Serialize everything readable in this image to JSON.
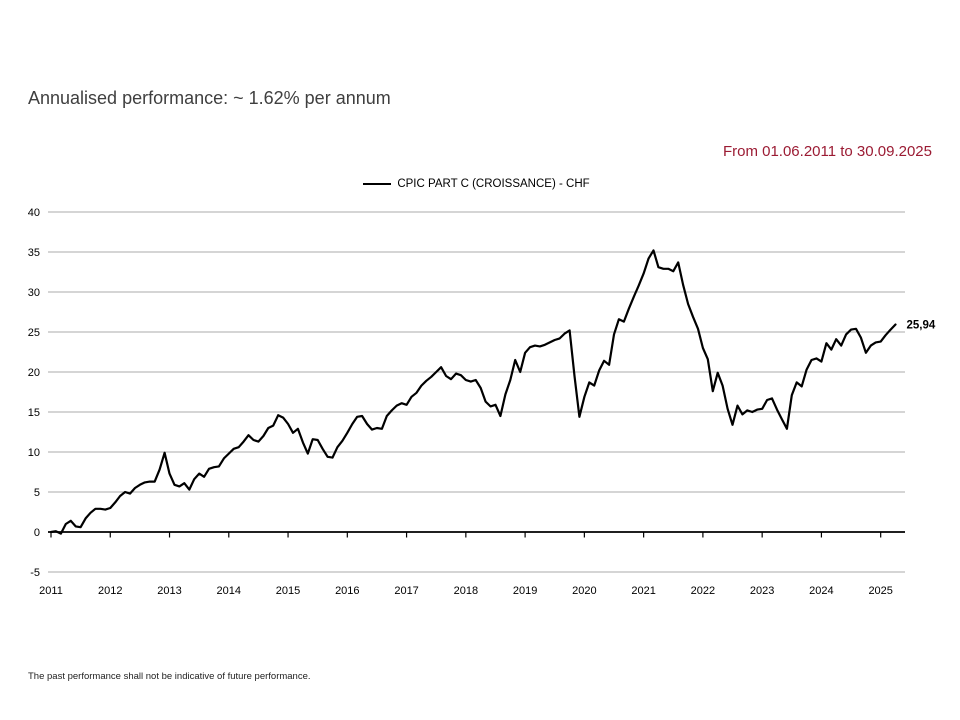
{
  "page": {
    "background": "#ffffff"
  },
  "header": {
    "title": "Annualised performance: ~ 1.62% per annum",
    "period": "From 01.06.2011 to 30.09.2025",
    "period_color": "#9b1b33",
    "title_color": "#3f3f3f"
  },
  "legend": {
    "label": "CPIC PART C (CROISSANCE) - CHF",
    "line_color": "#000000"
  },
  "footer": {
    "disclaimer": "The past performance shall not be indicative of future performance."
  },
  "chart_data": {
    "type": "line",
    "title": "Annualised performance: ~ 1.62% per annum",
    "period": "From 01.06.2011 to 30.09.2025",
    "frequency": "monthly",
    "x_start": "2011-06",
    "x_end": "2025-09",
    "x_tick_labels": [
      "2011",
      "2012",
      "2013",
      "2014",
      "2015",
      "2016",
      "2017",
      "2018",
      "2019",
      "2020",
      "2021",
      "2022",
      "2023",
      "2024",
      "2025"
    ],
    "y_ticks": [
      40,
      35,
      30,
      25,
      20,
      15,
      10,
      5,
      0,
      -5
    ],
    "ylim": [
      -5,
      40
    ],
    "grid": "horizontal",
    "grid_color": "#ababab",
    "axis_color": "#000000",
    "legend_position": "top-center",
    "end_value_label": "25,94",
    "series": [
      {
        "name": "CPIC PART C (CROISSANCE) - CHF",
        "color": "#000000",
        "values": [
          0.0,
          0.1,
          -0.2,
          1.0,
          1.4,
          0.7,
          0.6,
          1.7,
          2.4,
          2.9,
          2.9,
          2.8,
          3.0,
          3.7,
          4.5,
          5.0,
          4.8,
          5.5,
          5.9,
          6.2,
          6.3,
          6.3,
          7.8,
          9.9,
          7.3,
          5.9,
          5.7,
          6.1,
          5.3,
          6.6,
          7.3,
          6.9,
          7.9,
          8.1,
          8.2,
          9.2,
          9.8,
          10.4,
          10.6,
          11.3,
          12.1,
          11.5,
          11.3,
          12.0,
          13.0,
          13.3,
          14.6,
          14.3,
          13.5,
          12.4,
          12.9,
          11.2,
          9.8,
          11.6,
          11.5,
          10.4,
          9.4,
          9.3,
          10.6,
          11.4,
          12.4,
          13.5,
          14.4,
          14.5,
          13.5,
          12.8,
          13.0,
          12.9,
          14.5,
          15.2,
          15.8,
          16.1,
          15.9,
          16.9,
          17.4,
          18.3,
          18.9,
          19.4,
          20.0,
          20.6,
          19.5,
          19.1,
          19.8,
          19.6,
          19.0,
          18.8,
          19.0,
          18.0,
          16.3,
          15.7,
          15.9,
          14.5,
          17.2,
          19.0,
          21.5,
          20.0,
          22.4,
          23.1,
          23.3,
          23.2,
          23.4,
          23.7,
          24.0,
          24.2,
          24.8,
          25.2,
          19.5,
          14.4,
          16.9,
          18.7,
          18.3,
          20.2,
          21.4,
          20.9,
          24.7,
          26.6,
          26.3,
          27.9,
          29.4,
          30.8,
          32.3,
          34.2,
          35.2,
          33.1,
          32.9,
          32.9,
          32.6,
          33.7,
          30.9,
          28.5,
          26.9,
          25.4,
          23.0,
          21.6,
          17.6,
          19.9,
          18.3,
          15.4,
          13.4,
          15.8,
          14.7,
          15.2,
          15.0,
          15.3,
          15.4,
          16.5,
          16.7,
          15.3,
          14.1,
          12.9,
          17.1,
          18.7,
          18.2,
          20.3,
          21.5,
          21.7,
          21.3,
          23.6,
          22.8,
          24.1,
          23.3,
          24.7,
          25.3,
          25.4,
          24.3,
          22.4,
          23.3,
          23.7,
          23.8,
          24.6,
          25.3,
          25.94
        ]
      }
    ],
    "annotations": [
      {
        "text": "25,94",
        "position": "end-of-line"
      }
    ]
  }
}
